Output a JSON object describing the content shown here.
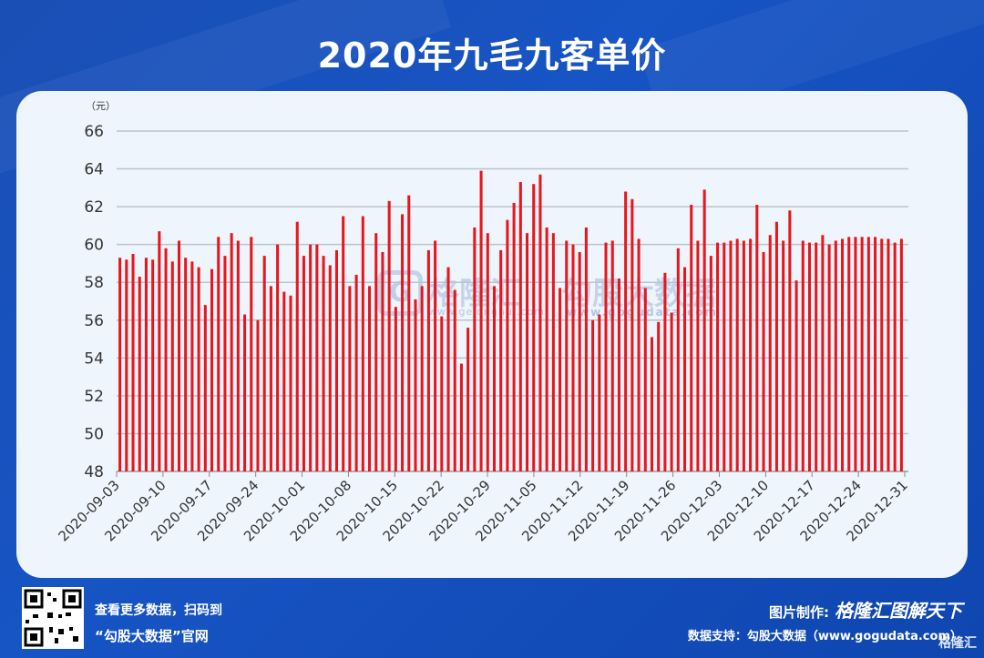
{
  "title": "2020年九毛九客单价",
  "watermark": {
    "brand1": "格隆汇",
    "brand1_url": "www.gelonghui.com",
    "brand2": "勾股大数据",
    "brand2_url": "www.gogudata.com"
  },
  "footer": {
    "scan_text": "查看更多数据，扫码到",
    "site_name": "“勾股大数据”官网",
    "credit_label": "图片制作:",
    "credit_brand": "格隆汇图解天下",
    "data_source": "数据支持：勾股大数据（www.gogudata.com）",
    "corner_logo": "格隆汇"
  },
  "colors": {
    "bar": "#e8151b",
    "grid": "#b9c3cf",
    "axis": "#8a8a8a",
    "tick_text": "#333333"
  },
  "chart_data": {
    "type": "bar",
    "unit_label": "（元）",
    "ylim": [
      48,
      66
    ],
    "yticks": [
      48,
      50,
      52,
      54,
      56,
      58,
      60,
      62,
      64,
      66
    ],
    "grid": true,
    "x_start": "2020-09-03",
    "x_end": "2020-12-31",
    "xtick_labels": [
      "2020-09-03",
      "2020-09-10",
      "2020-09-17",
      "2020-09-24",
      "2020-10-01",
      "2020-10-08",
      "2020-10-15",
      "2020-10-22",
      "2020-10-29",
      "2020-11-05",
      "2020-11-12",
      "2020-11-19",
      "2020-11-26",
      "2020-12-03",
      "2020-12-10",
      "2020-12-17",
      "2020-12-24",
      "2020-12-31"
    ],
    "values": [
      59.3,
      59.2,
      59.5,
      58.3,
      59.3,
      59.2,
      60.7,
      59.8,
      59.1,
      60.2,
      59.3,
      59.1,
      58.8,
      56.8,
      58.7,
      60.4,
      59.4,
      60.6,
      60.2,
      56.3,
      60.4,
      56.0,
      59.4,
      57.8,
      60.0,
      57.5,
      57.3,
      61.2,
      59.4,
      60.0,
      60.0,
      59.4,
      58.9,
      59.7,
      61.5,
      57.8,
      58.4,
      61.5,
      57.8,
      60.6,
      59.6,
      62.3,
      56.7,
      61.6,
      62.6,
      57.1,
      57.8,
      59.7,
      60.2,
      56.2,
      58.8,
      57.6,
      53.7,
      55.6,
      60.9,
      63.9,
      60.6,
      57.8,
      59.7,
      61.3,
      62.2,
      63.3,
      60.6,
      63.2,
      63.7,
      60.9,
      60.6,
      57.7,
      60.2,
      60.0,
      59.6,
      60.9,
      56.0,
      56.3,
      60.1,
      60.2,
      58.2,
      62.8,
      62.4,
      60.3,
      57.7,
      55.1,
      55.9,
      58.5,
      56.4,
      59.8,
      58.8,
      62.1,
      60.2,
      62.9,
      59.4,
      60.1,
      60.1,
      60.2,
      60.3,
      60.2,
      60.3,
      62.1,
      59.6,
      60.5,
      61.2,
      60.2,
      61.8,
      58.1,
      60.2,
      60.1,
      60.1,
      60.5,
      60.0,
      60.2,
      60.3,
      60.4,
      60.4,
      60.4,
      60.4,
      60.4,
      60.3,
      60.3,
      60.1,
      60.3
    ]
  }
}
